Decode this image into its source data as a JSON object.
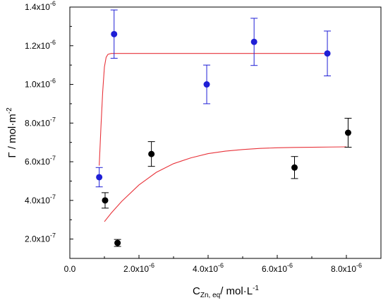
{
  "chart_data": {
    "type": "scatter",
    "title": "",
    "xlabel": {
      "main": "C",
      "sub": "Zn, eq",
      "rest": "/ mol·L",
      "sup": "-1"
    },
    "ylabel": {
      "main": "Γ / mol·m",
      "sup": "-2"
    },
    "xlim": [
      0,
      9e-06
    ],
    "ylim": [
      1e-07,
      1.4e-06
    ],
    "grid": false,
    "x_ticks": [
      {
        "value": 0,
        "mant": "0.0",
        "exp": ""
      },
      {
        "value": 2e-06,
        "mant": "2.0x10",
        "exp": "-6"
      },
      {
        "value": 4e-06,
        "mant": "4.0x10",
        "exp": "-6"
      },
      {
        "value": 6e-06,
        "mant": "6.0x10",
        "exp": "-6"
      },
      {
        "value": 8e-06,
        "mant": "8.0x10",
        "exp": "-6"
      }
    ],
    "y_ticks": [
      {
        "value": 2e-07,
        "mant": "2.0x10",
        "exp": "-7"
      },
      {
        "value": 4e-07,
        "mant": "4.0x10",
        "exp": "-7"
      },
      {
        "value": 6e-07,
        "mant": "6.0x10",
        "exp": "-7"
      },
      {
        "value": 8e-07,
        "mant": "8.0x10",
        "exp": "-7"
      },
      {
        "value": 1e-06,
        "mant": "1.0x10",
        "exp": "-6"
      },
      {
        "value": 1.2e-06,
        "mant": "1.2x10",
        "exp": "-6"
      },
      {
        "value": 1.4e-06,
        "mant": "1.4x10",
        "exp": "-6"
      }
    ],
    "series": [
      {
        "color": "#1f1fd6",
        "points": [
          {
            "x": 8.5e-07,
            "y": 5.2e-07,
            "err": 5e-08
          },
          {
            "x": 1.28e-06,
            "y": 1.26e-06,
            "err": 1.25e-07
          },
          {
            "x": 3.96e-06,
            "y": 1e-06,
            "err": 1e-07
          },
          {
            "x": 5.33e-06,
            "y": 1.22e-06,
            "err": 1.22e-07
          },
          {
            "x": 7.45e-06,
            "y": 1.16e-06,
            "err": 1.16e-07
          }
        ]
      },
      {
        "color": "#000000",
        "points": [
          {
            "x": 1.02e-06,
            "y": 4e-07,
            "err": 4e-08
          },
          {
            "x": 1.38e-06,
            "y": 1.8e-07,
            "err": 1.8e-08
          },
          {
            "x": 2.36e-06,
            "y": 6.4e-07,
            "err": 6.4e-08
          },
          {
            "x": 6.5e-06,
            "y": 5.7e-07,
            "err": 5.7e-08
          },
          {
            "x": 8.05e-06,
            "y": 7.5e-07,
            "err": 7.5e-08
          }
        ]
      }
    ],
    "fit_curves": [
      {
        "color": "#e8333a",
        "x": [
          8.5e-07,
          9e-07,
          9.5e-07,
          1e-06,
          1.05e-06,
          1.1e-06,
          1.15e-06,
          1.2e-06,
          1.3e-06,
          1.5e-06,
          2e-06,
          3e-06,
          4e-06,
          5e-06,
          6e-06,
          7e-06,
          7.5e-06
        ],
        "y": [
          5.8e-07,
          7.8e-07,
          9.6e-07,
          1.09e-06,
          1.14e-06,
          1.155e-06,
          1.158e-06,
          1.16e-06,
          1.16e-06,
          1.16e-06,
          1.16e-06,
          1.16e-06,
          1.16e-06,
          1.16e-06,
          1.16e-06,
          1.16e-06,
          1.16e-06
        ]
      },
      {
        "color": "#e8333a",
        "x": [
          1e-06,
          1.2e-06,
          1.5e-06,
          2e-06,
          2.5e-06,
          3e-06,
          3.5e-06,
          4e-06,
          4.5e-06,
          5e-06,
          5.5e-06,
          6e-06,
          6.5e-06,
          7e-06,
          7.5e-06,
          8e-06
        ],
        "y": [
          2.9e-07,
          3.35e-07,
          3.95e-07,
          4.8e-07,
          5.45e-07,
          5.9e-07,
          6.2e-07,
          6.42e-07,
          6.55e-07,
          6.63e-07,
          6.69e-07,
          6.72e-07,
          6.74e-07,
          6.75e-07,
          6.76e-07,
          6.77e-07
        ]
      }
    ]
  }
}
